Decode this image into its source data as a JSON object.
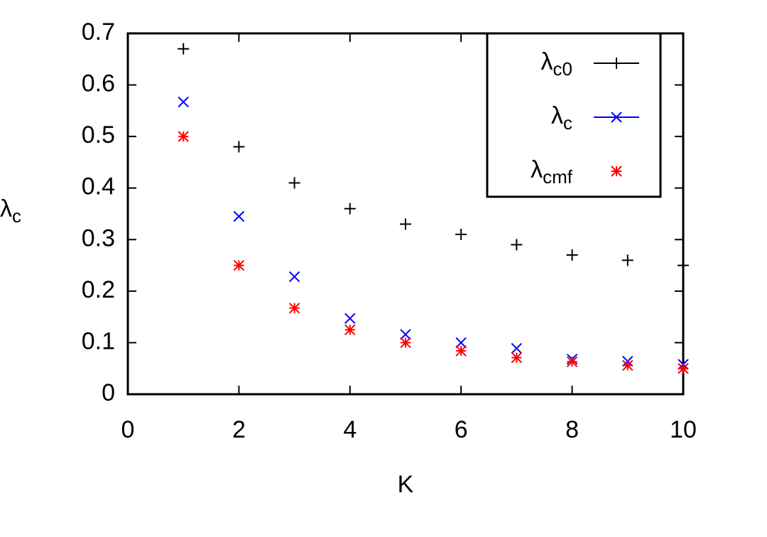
{
  "chart_data": {
    "type": "scatter",
    "xlabel": "K",
    "ylabel": "λc",
    "x": [
      1,
      2,
      3,
      4,
      5,
      6,
      7,
      8,
      9,
      10
    ],
    "series": [
      {
        "name": "λc0",
        "color": "#000000",
        "marker": "plus",
        "legend_line": true,
        "values": [
          0.67,
          0.48,
          0.41,
          0.36,
          0.33,
          0.31,
          0.29,
          0.27,
          0.26,
          0.25
        ]
      },
      {
        "name": "λc",
        "color": "#0000ff",
        "marker": "cross",
        "legend_line": true,
        "values": [
          0.567,
          0.345,
          0.228,
          0.147,
          0.116,
          0.1,
          0.089,
          0.068,
          0.064,
          0.058
        ]
      },
      {
        "name": "λcmf",
        "color": "#ff0000",
        "marker": "star",
        "legend_line": false,
        "values": [
          0.5,
          0.25,
          0.167,
          0.125,
          0.1,
          0.084,
          0.071,
          0.063,
          0.056,
          0.05
        ]
      }
    ],
    "xlim": [
      0,
      10
    ],
    "xticks": [
      0,
      2,
      4,
      6,
      8,
      10
    ],
    "ylim": [
      0,
      0.7
    ],
    "yticks": [
      0,
      0.1,
      0.2,
      0.3,
      0.4,
      0.5,
      0.6,
      0.7
    ],
    "grid": false,
    "legend_position": "top-right"
  }
}
